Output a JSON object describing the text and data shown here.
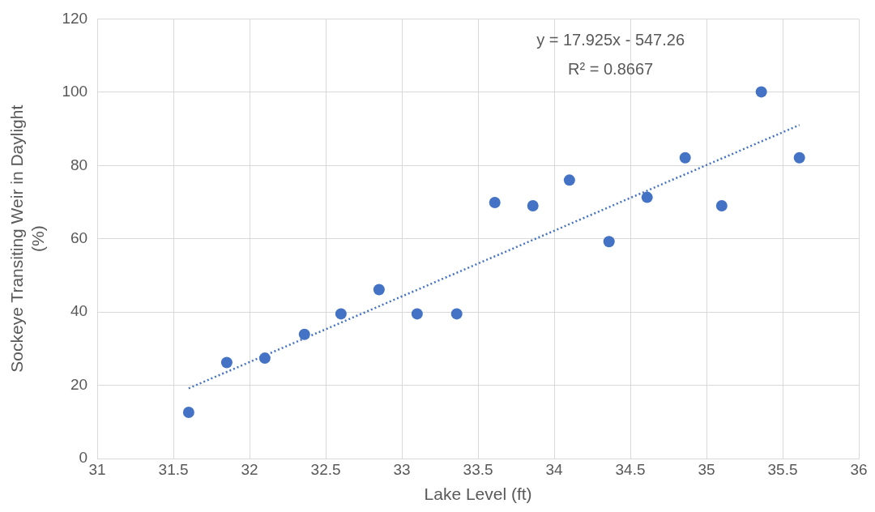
{
  "chart_data": {
    "type": "scatter",
    "xlabel": "Lake Level (ft)",
    "ylabel": "Sockeye Transiting Weir in Daylight (%)",
    "xlim": [
      31,
      36
    ],
    "xticks": [
      31,
      31.5,
      32,
      32.5,
      33,
      33.5,
      34,
      34.5,
      35,
      35.5,
      36
    ],
    "ylim": [
      0,
      120
    ],
    "yticks": [
      0,
      20,
      40,
      60,
      80,
      100,
      120
    ],
    "grid": true,
    "marker": "circle",
    "series": [
      {
        "color": "#4472c4",
        "x": [
          31.6,
          31.85,
          32.1,
          32.36,
          32.6,
          32.85,
          33.1,
          33.36,
          33.61,
          33.86,
          34.1,
          34.36,
          34.61,
          34.86,
          35.1,
          35.36,
          35.61
        ],
        "values": [
          12.6,
          26.2,
          27.4,
          33.9,
          39.5,
          46.1,
          39.5,
          39.5,
          69.9,
          69,
          76,
          59.2,
          71.3,
          82.1,
          69,
          100.1,
          82.1
        ]
      },
      {
        "type": "line",
        "color": "#4472c4",
        "line_style": "dotted",
        "marker": "none",
        "x": [
          31.6,
          35.61
        ],
        "values": [
          19.17,
          91.04
        ]
      }
    ],
    "annotations": [
      "y = 17.925x - 547.26",
      "R² = 0.8667"
    ]
  }
}
